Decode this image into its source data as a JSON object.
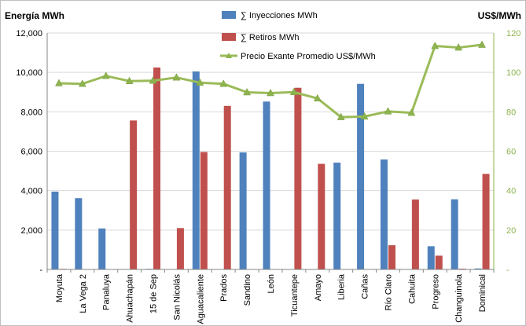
{
  "chart_data": {
    "type": "bar",
    "y_left_title": "Energía MWh",
    "y_right_title": "US$/MWh",
    "ylim_left": [
      0,
      12000
    ],
    "ylim_right": [
      0,
      120
    ],
    "y_left_ticks": [
      "-",
      "2,000",
      "4,000",
      "6,000",
      "8,000",
      "10,000",
      "12,000"
    ],
    "y_right_ticks": [
      "-",
      "20",
      "40",
      "60",
      "80",
      "100",
      "120"
    ],
    "grid": true,
    "legend_position": "top",
    "categories": [
      "Moyuta",
      "La Vega 2",
      "Panaluya",
      "Ahuachapán",
      "15 de Sep",
      "San Nicolás",
      "Aguacaliente",
      "Prados",
      "Sandino",
      "León",
      "Ticuantepe",
      "Amayo",
      "Liberia",
      "Cañas",
      "Río Claro",
      "Cahuita",
      "Progreso",
      "Changuinola",
      "Dominical"
    ],
    "series": [
      {
        "name": "∑ Inyecciones MWh",
        "type": "bar",
        "axis": "left",
        "color": "#4f81bd",
        "values": [
          3950,
          3620,
          2080,
          0,
          30,
          0,
          10050,
          0,
          5940,
          8520,
          0,
          0,
          5420,
          9420,
          5580,
          20,
          1180,
          3560,
          50
        ]
      },
      {
        "name": "∑ Retiros MWh",
        "type": "bar",
        "axis": "left",
        "color": "#c0504d",
        "values": [
          30,
          0,
          0,
          7560,
          10250,
          2100,
          5960,
          8300,
          0,
          0,
          9220,
          5360,
          0,
          0,
          1230,
          3550,
          700,
          40,
          4850
        ]
      },
      {
        "name": "Precio Exante Promedio US$/MWh",
        "type": "line",
        "axis": "right",
        "color": "#9bbb59",
        "values": [
          94.5,
          94.2,
          98.2,
          95.6,
          95.8,
          97.4,
          94.8,
          94.2,
          89.9,
          89.5,
          90.0,
          86.8,
          77.3,
          77.6,
          80.2,
          79.5,
          113.4,
          112.6,
          114.0
        ]
      }
    ]
  }
}
